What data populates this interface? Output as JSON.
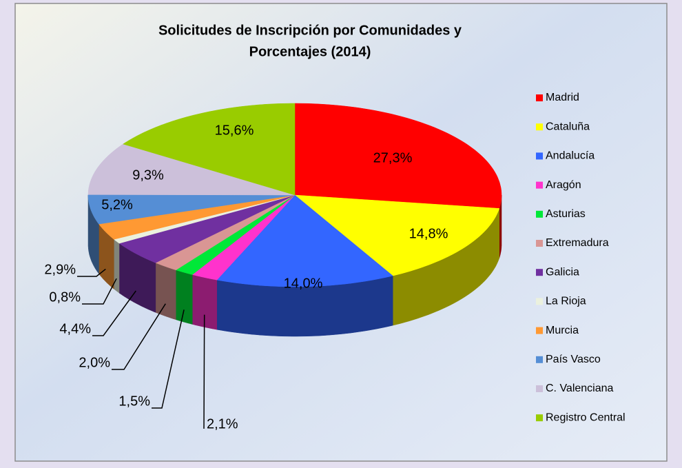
{
  "chart_data": {
    "type": "pie3d",
    "title": [
      "Solicitudes de Inscripción por Comunidades y",
      "Porcentajes (2014)"
    ],
    "categories": [
      "Madrid",
      "Cataluña",
      "Andalucía",
      "Aragón",
      "Asturias",
      "Extremadura",
      "Galicia",
      "La Rioja",
      "Murcia",
      "País Vasco",
      "C. Valenciana",
      "Registro Central"
    ],
    "values": [
      27.3,
      14.8,
      14.0,
      2.1,
      1.5,
      2.0,
      4.4,
      0.8,
      2.9,
      5.2,
      9.3,
      15.6
    ],
    "value_labels": [
      "27,3%",
      "14,8%",
      "14,0%",
      "2,1%",
      "1,5%",
      "2,0%",
      "4,4%",
      "0,8%",
      "2,9%",
      "5,2%",
      "9,3%",
      "15,6%"
    ],
    "colors": [
      "#ff0000",
      "#ffff00",
      "#3366ff",
      "#ff33cc",
      "#00e838",
      "#d99694",
      "#7030a0",
      "#ebf1de",
      "#ff9933",
      "#558ed5",
      "#ccc0da",
      "#99cc00"
    ],
    "legend": "right"
  }
}
